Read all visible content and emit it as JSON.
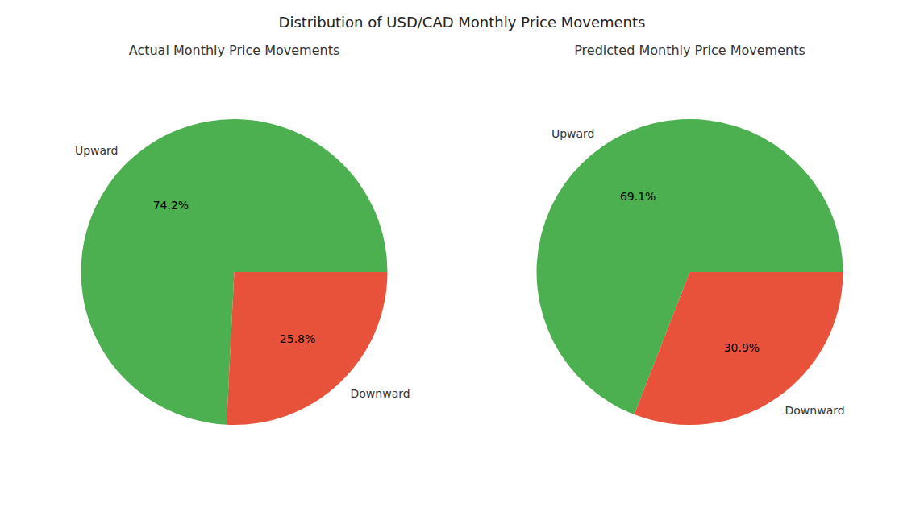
{
  "title": "Distribution of USD/CAD Monthly Price Movements",
  "chart_data": [
    {
      "type": "pie",
      "title": "Actual Monthly Price Movements",
      "categories": [
        "Upward",
        "Downward"
      ],
      "values": [
        74.2,
        25.8
      ],
      "value_labels": [
        "74.2%",
        "25.8%"
      ],
      "colors": [
        "#4CAF50",
        "#E8523A"
      ],
      "data_labels": true
    },
    {
      "type": "pie",
      "title": "Predicted Monthly Price Movements",
      "categories": [
        "Upward",
        "Downward"
      ],
      "values": [
        69.1,
        30.9
      ],
      "value_labels": [
        "69.1%",
        "30.9%"
      ],
      "colors": [
        "#4CAF50",
        "#E8523A"
      ],
      "data_labels": true
    }
  ]
}
